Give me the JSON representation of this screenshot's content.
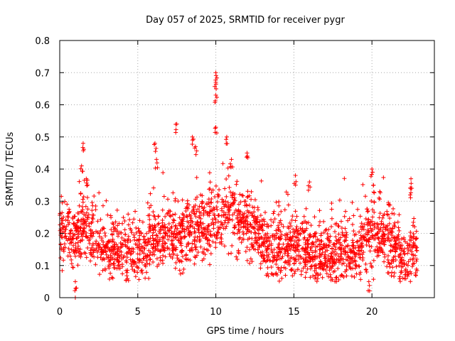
{
  "chart_data": {
    "type": "scatter",
    "title": "Day 057 of 2025, SRMTID for receiver pygr",
    "xlabel": "GPS time / hours",
    "ylabel": "SRMTID / TECUs",
    "xlim": [
      0,
      24
    ],
    "ylim": [
      0,
      0.8
    ],
    "xticks": [
      0,
      5,
      10,
      15,
      20
    ],
    "yticks": [
      0,
      0.1,
      0.2,
      0.3,
      0.4,
      0.5,
      0.6,
      0.7,
      0.8
    ],
    "xtick_labels": [
      "0",
      "5",
      "10",
      "15",
      "20"
    ],
    "ytick_labels": [
      "0",
      "0.1",
      "0.2",
      "0.3",
      "0.4",
      "0.5",
      "0.6",
      "0.7",
      "0.8"
    ],
    "grid": true,
    "marker": "plus",
    "color": "#ff0000",
    "x_data_range": [
      0,
      22.9
    ],
    "baseline_profile": {
      "x": [
        0,
        0.5,
        1,
        1.5,
        2,
        3,
        4,
        5,
        6,
        7,
        8,
        9,
        10,
        10.5,
        11,
        12,
        13,
        14,
        15,
        16,
        17,
        18,
        19,
        20,
        21,
        22,
        22.9
      ],
      "y": [
        0.22,
        0.2,
        0.17,
        0.21,
        0.19,
        0.15,
        0.14,
        0.14,
        0.17,
        0.18,
        0.2,
        0.21,
        0.23,
        0.26,
        0.27,
        0.22,
        0.17,
        0.16,
        0.17,
        0.14,
        0.13,
        0.14,
        0.14,
        0.2,
        0.17,
        0.12,
        0.14
      ]
    },
    "spread": 0.05,
    "notable_points": [
      {
        "x": 1.0,
        "y": 0.0
      },
      {
        "x": 1.0,
        "y": 0.05
      },
      {
        "x": 1.5,
        "y": 0.48
      },
      {
        "x": 1.4,
        "y": 0.41
      },
      {
        "x": 1.7,
        "y": 0.37
      },
      {
        "x": 6.1,
        "y": 0.48
      },
      {
        "x": 6.2,
        "y": 0.43
      },
      {
        "x": 7.5,
        "y": 0.54
      },
      {
        "x": 8.5,
        "y": 0.5
      },
      {
        "x": 8.7,
        "y": 0.47
      },
      {
        "x": 10.0,
        "y": 0.7
      },
      {
        "x": 10.0,
        "y": 0.67
      },
      {
        "x": 10.0,
        "y": 0.63
      },
      {
        "x": 10.0,
        "y": 0.53
      },
      {
        "x": 10.7,
        "y": 0.5
      },
      {
        "x": 11.0,
        "y": 0.43
      },
      {
        "x": 12.0,
        "y": 0.45
      },
      {
        "x": 15.1,
        "y": 0.38
      },
      {
        "x": 16.0,
        "y": 0.36
      },
      {
        "x": 20.0,
        "y": 0.4
      },
      {
        "x": 20.1,
        "y": 0.35
      },
      {
        "x": 20.5,
        "y": 0.33
      },
      {
        "x": 22.5,
        "y": 0.37
      },
      {
        "x": 22.5,
        "y": 0.34
      },
      {
        "x": 19.8,
        "y": 0.05
      }
    ]
  }
}
